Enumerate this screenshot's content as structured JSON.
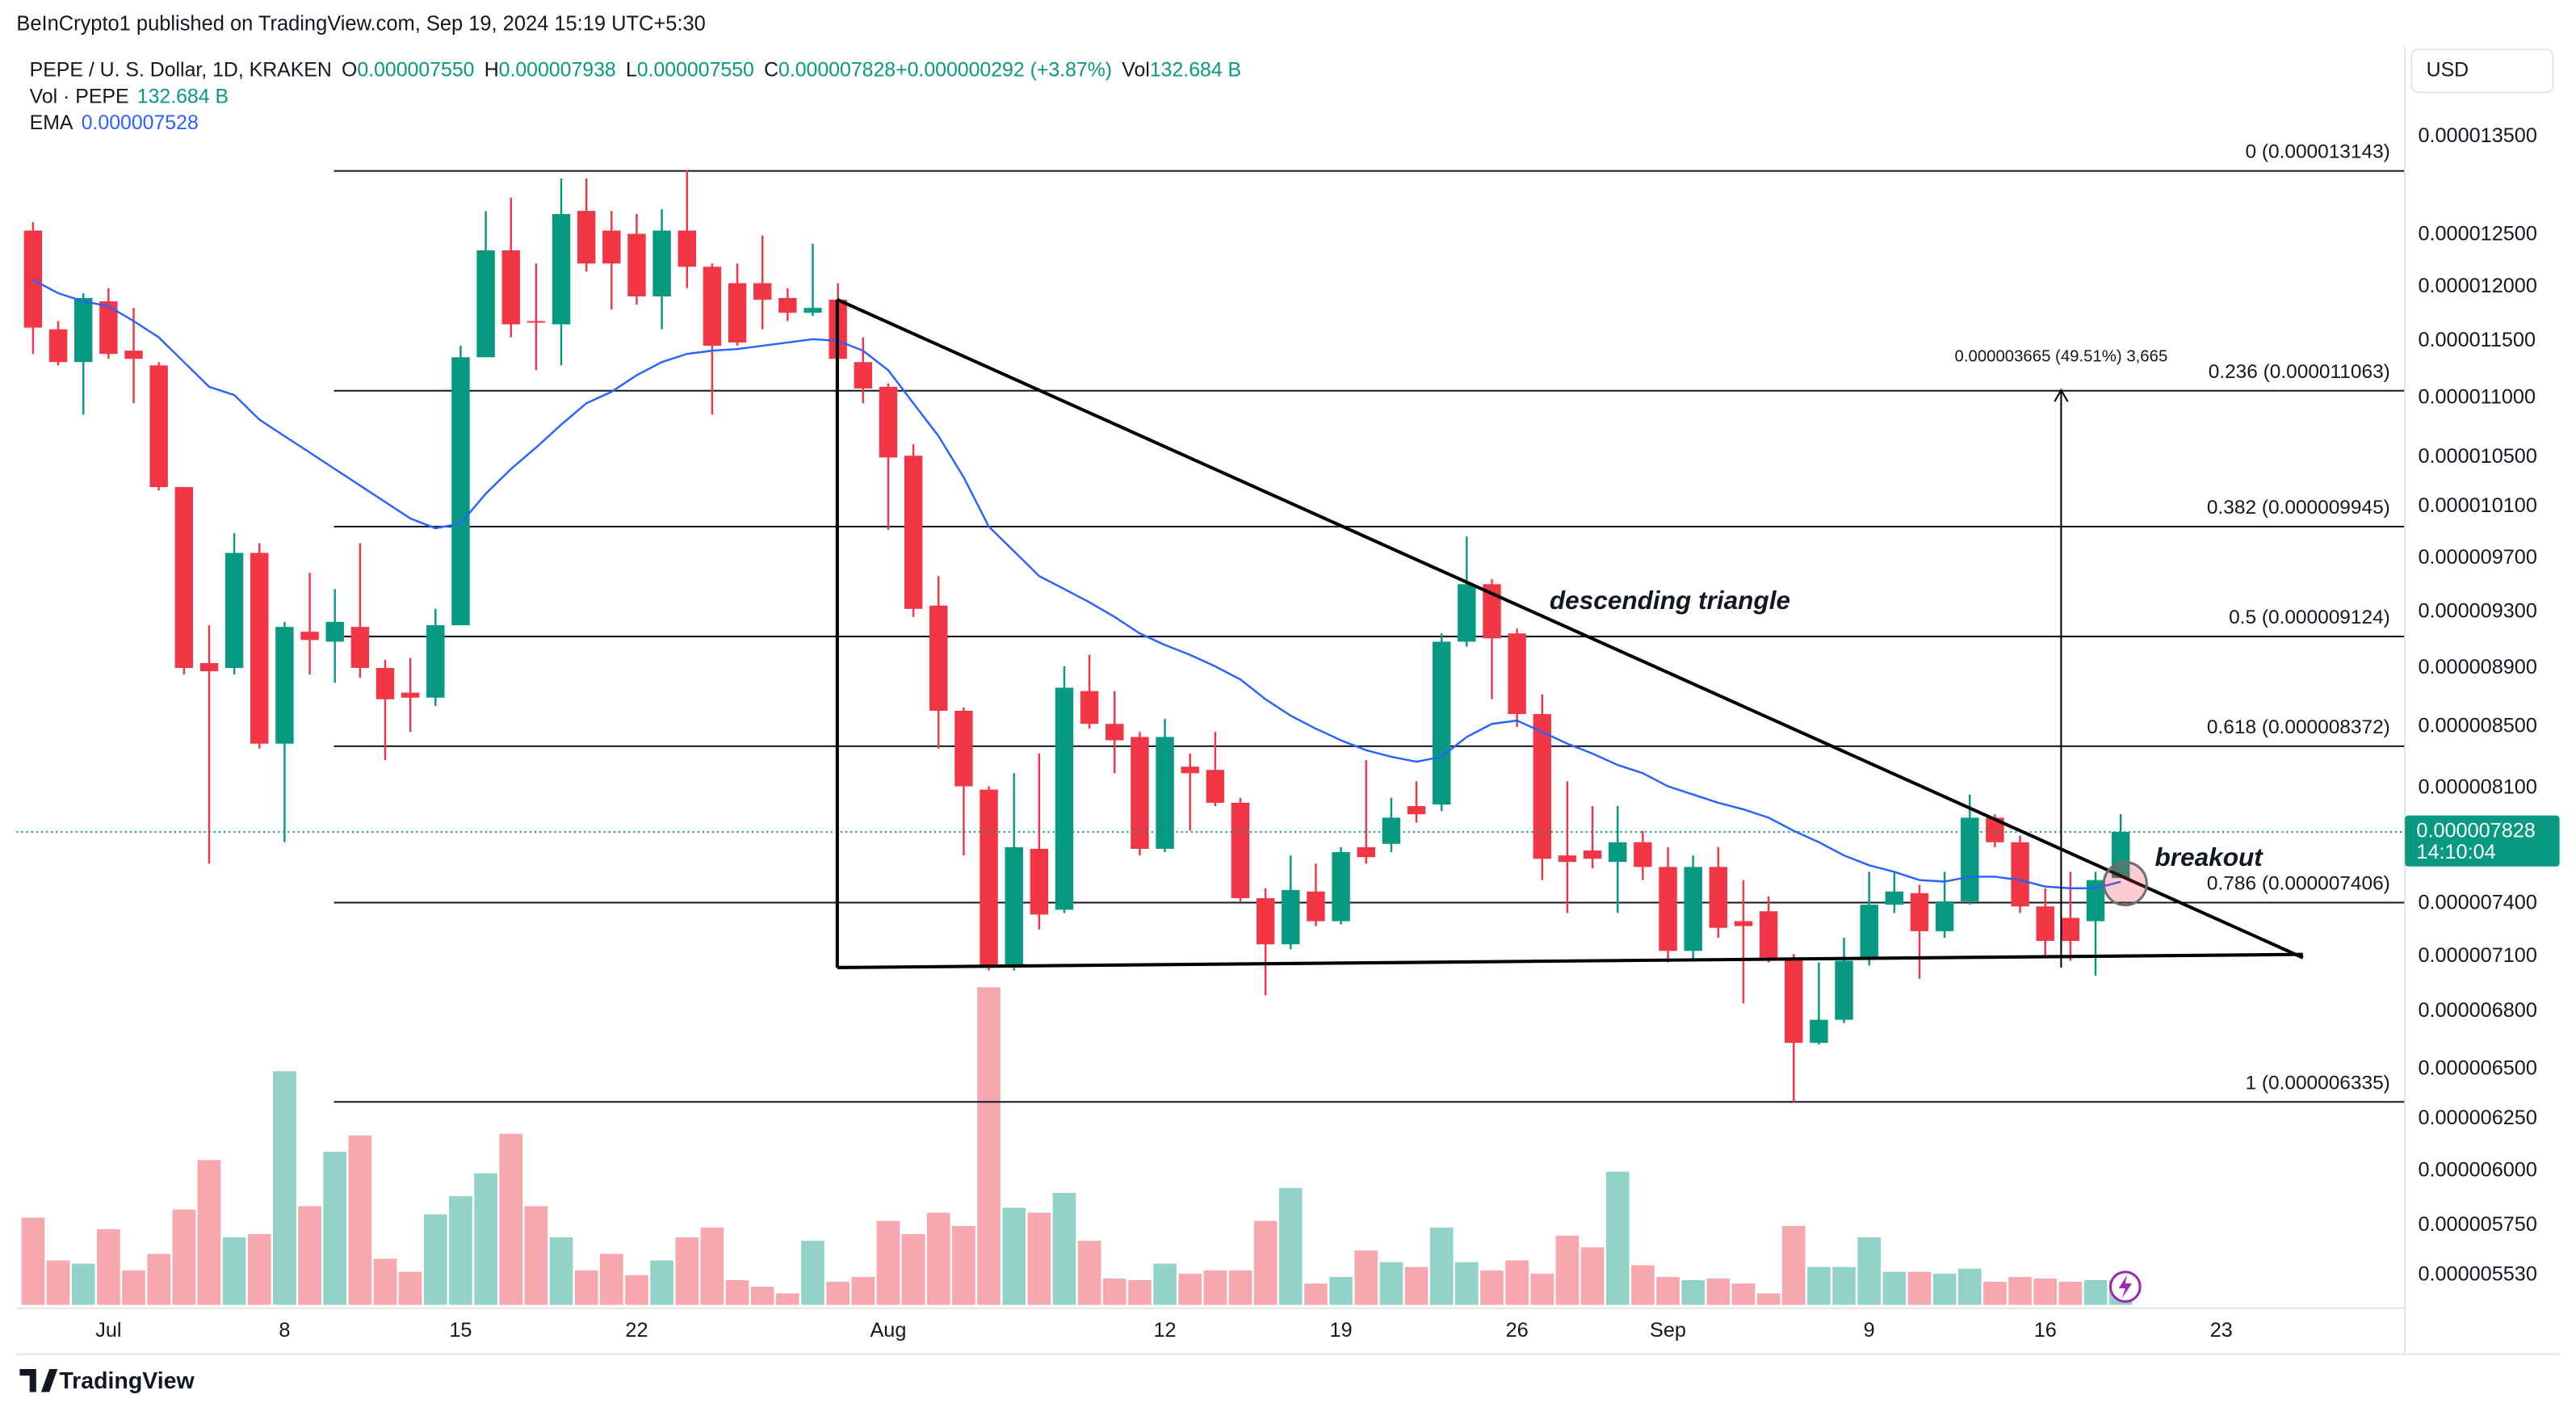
{
  "header": {
    "published": "BeInCrypto1 published on TradingView.com, Sep 19, 2024 15:19 UTC+5:30",
    "currency": "USD",
    "brand": "TradingView"
  },
  "chart_data": {
    "type": "candlestick",
    "title": "PEPE / U. S. Dollar, 1D, KRAKEN",
    "ohlc_legend": [
      {
        "key": "O",
        "value": "0.000007550"
      },
      {
        "key": "H",
        "value": "0.000007938"
      },
      {
        "key": "L",
        "value": "0.000007550"
      },
      {
        "key": "C",
        "value": "0.000007828"
      },
      {
        "key": "",
        "value": "+0.000000292 (+3.87%)"
      },
      {
        "key": "Vol",
        "value": "132.684 B"
      }
    ],
    "x": [
      -3,
      -2,
      -1,
      0,
      1,
      2,
      3,
      4,
      5,
      6,
      7,
      8,
      9,
      10,
      11,
      12,
      13,
      14,
      15,
      16,
      17,
      18,
      19,
      20,
      21,
      22,
      23,
      24,
      25,
      26,
      27,
      28,
      29,
      30,
      31,
      32,
      33,
      34,
      35,
      36,
      37,
      38,
      39,
      40,
      41,
      42,
      43,
      44,
      45,
      46,
      47,
      48,
      49,
      50,
      51,
      52,
      53,
      54,
      55,
      56,
      57,
      58,
      59,
      60,
      61,
      62,
      63,
      64,
      65,
      66,
      67,
      68,
      69,
      70,
      71,
      72,
      73,
      74,
      75,
      76,
      77,
      78,
      79,
      80
    ],
    "open": [
      1.2543e-05,
      1.1609e-05,
      1.1314e-05,
      1.1866e-05,
      1.1416e-05,
      1.1285e-05,
      1.0258e-05,
      8.936e-06,
      8.902e-06,
      9.742e-06,
      8.389e-06,
      9.158e-06,
      9.087e-06,
      9.193e-06,
      8.902e-06,
      8.731e-06,
      8.697e-06,
      9.205e-06,
      1.1357e-05,
      1.235e-05,
      1.1684e-05,
      1.1654e-05,
      1.2738e-05,
      1.2543e-05,
      1.2511e-05,
      1.1912e-05,
      1.2543e-05,
      1.2192e-05,
      1.2036e-05,
      1.2036e-05,
      1.1897e-05,
      1.176e-05,
      1.1881e-05,
      1.1314e-05,
      1.1097e-05,
      1.0513e-05,
      9.348e-06,
      8.608e-06,
      8.092e-06,
      7.04e-06,
      7.725e-06,
      7.365e-06,
      8.742e-06,
      8.52e-06,
      8.433e-06,
      7.725e-06,
      8.239e-06,
      8.218e-06,
      8.009e-06,
      7.432e-06,
      7.168e-06,
      7.471e-06,
      7.299e-06,
      7.735e-06,
      7.755e-06,
      7.988e-06,
      7.998e-06,
      9.087e-06,
      9.506e-06,
      9.146e-06,
      8.586e-06,
      7.685e-06,
      7.715e-06,
      7.646e-06,
      7.765e-06,
      7.616e-06,
      7.131e-06,
      7.616e-06,
      7.299e-06,
      7.356e-06,
      7.094e-06,
      6.635e-06,
      6.756e-06,
      7.085e-06,
      7.394e-06,
      7.461e-06,
      7.242e-06,
      7.413e-06,
      7.916e-06,
      7.765e-06,
      7.384e-06,
      7.318e-06,
      7.299e-06,
      7.55e-06
    ],
    "high": [
      1.2625e-05,
      1.1684e-05,
      1.1942e-05,
      1.1989e-05,
      1.1805e-05,
      1.1314e-05,
      1.0258e-05,
      9.205e-06,
      9.894e-06,
      9.817e-06,
      9.229e-06,
      9.592e-06,
      9.47e-06,
      9.817e-06,
      8.959e-06,
      8.971e-06,
      9.324e-06,
      1.146e-05,
      1.2735e-05,
      1.2871e-05,
      1.2223e-05,
      1.3066e-05,
      1.3066e-05,
      1.2738e-05,
      1.2706e-05,
      1.2755e-05,
      1.3154e-05,
      1.2223e-05,
      1.2223e-05,
      1.2494e-05,
      1.1989e-05,
      1.2414e-05,
      1.2036e-05,
      1.1535e-05,
      1.1126e-05,
      1.0608e-05,
      9.567e-06,
      8.63e-06,
      8.113e-06,
      8.197e-06,
      8.324e-06,
      8.913e-06,
      8.994e-06,
      8.742e-06,
      8.466e-06,
      8.553e-06,
      8.324e-06,
      8.466e-06,
      8.04e-06,
      7.49e-06,
      7.685e-06,
      7.636e-06,
      7.735e-06,
      8.282e-06,
      8.04e-06,
      8.145e-06,
      9.146e-06,
      9.868e-06,
      9.543e-06,
      9.181e-06,
      8.72e-06,
      8.145e-06,
      7.988e-06,
      7.988e-06,
      7.835e-06,
      7.735e-06,
      7.685e-06,
      7.735e-06,
      7.538e-06,
      7.442e-06,
      7.113e-06,
      7.067e-06,
      7.205e-06,
      7.587e-06,
      7.587e-06,
      7.51e-06,
      7.587e-06,
      8.061e-06,
      7.937e-06,
      7.805e-06,
      7.49e-06,
      7.587e-06,
      7.587e-06,
      7.938e-06
    ],
    "low": [
      1.1387e-05,
      1.1285e-05,
      1.0857e-05,
      1.1343e-05,
      1.0955e-05,
      1.0231e-05,
      8.856e-06,
      7.636e-06,
      8.856e-06,
      8.357e-06,
      7.765e-06,
      8.856e-06,
      8.799e-06,
      8.833e-06,
      8.282e-06,
      8.466e-06,
      8.641e-06,
      9.205e-06,
      1.1357e-05,
      1.1535e-05,
      1.1242e-05,
      1.1285e-05,
      1.2145e-05,
      1.179e-05,
      1.1836e-05,
      1.1609e-05,
      1.1989e-05,
      1.0857e-05,
      1.146e-05,
      1.1609e-05,
      1.1684e-05,
      1.173e-05,
      1.1026e-05,
      1.0955e-05,
      9.919e-06,
      9.265e-06,
      8.357e-06,
      7.685e-06,
      7.022e-06,
      7.022e-06,
      7.252e-06,
      7.346e-06,
      8.488e-06,
      8.197e-06,
      7.685e-06,
      7.705e-06,
      7.835e-06,
      7.988e-06,
      7.413e-06,
      6.887e-06,
      7.14e-06,
      7.271e-06,
      7.28e-06,
      7.636e-06,
      7.705e-06,
      7.886e-06,
      7.957e-06,
      9.052e-06,
      8.686e-06,
      8.499e-06,
      7.538e-06,
      7.346e-06,
      7.607e-06,
      7.346e-06,
      7.538e-06,
      7.067e-06,
      7.085e-06,
      7.205e-06,
      6.843e-06,
      7.067e-06,
      6.334e-06,
      6.626e-06,
      6.739e-06,
      7.049e-06,
      7.346e-06,
      6.977e-06,
      7.205e-06,
      7.394e-06,
      7.735e-06,
      7.346e-06,
      7.094e-06,
      7.076e-06,
      6.994e-06,
      7.55e-06
    ],
    "close": [
      1.1624e-05,
      1.1314e-05,
      1.1897e-05,
      1.1387e-05,
      1.1343e-05,
      1.0258e-05,
      8.902e-06,
      8.879e-06,
      9.742e-06,
      8.389e-06,
      9.193e-06,
      9.099e-06,
      9.229e-06,
      8.902e-06,
      8.686e-06,
      8.697e-06,
      9.205e-06,
      1.1357e-05,
      1.235e-05,
      1.1654e-05,
      1.1669e-05,
      1.2706e-05,
      1.2223e-05,
      1.2223e-05,
      1.1912e-05,
      1.2543e-05,
      1.2192e-05,
      1.146e-05,
      1.1489e-05,
      1.1881e-05,
      1.176e-05,
      1.1805e-05,
      1.1343e-05,
      1.1083e-05,
      1.0499e-05,
      9.324e-06,
      8.608e-06,
      8.113e-06,
      7.04e-06,
      7.735e-06,
      7.337e-06,
      8.765e-06,
      8.52e-06,
      8.411e-06,
      7.725e-06,
      8.433e-06,
      8.197e-06,
      8.009e-06,
      7.432e-06,
      7.168e-06,
      7.48e-06,
      7.299e-06,
      7.705e-06,
      7.675e-06,
      7.916e-06,
      7.937e-06,
      9.087e-06,
      9.506e-06,
      9.111e-06,
      8.586e-06,
      7.665e-06,
      7.646e-06,
      7.665e-06,
      7.765e-06,
      7.616e-06,
      7.131e-06,
      7.616e-06,
      7.261e-06,
      7.271e-06,
      7.094e-06,
      6.635e-06,
      6.756e-06,
      7.076e-06,
      7.394e-06,
      7.471e-06,
      7.242e-06,
      7.413e-06,
      7.916e-06,
      7.765e-06,
      7.384e-06,
      7.187e-06,
      7.187e-06,
      7.538e-06,
      7.828e-06
    ],
    "up_color": "#089981",
    "down_color": "#f23645",
    "series": [
      {
        "name": "Vol · PEPE",
        "type": "bar",
        "axis": "y2",
        "value_label": "132.684 B",
        "up_color": "#92d2c8",
        "down_color": "#f7a8ae",
        "values": [
          465,
          237,
          220,
          404,
          184,
          272,
          509,
          773,
          360,
          378,
          1247,
          527,
          817,
          904,
          246,
          176,
          483,
          580,
          702,
          913,
          527,
          360,
          184,
          272,
          158,
          237,
          360,
          413,
          132,
          97,
          61,
          342,
          123,
          149,
          448,
          378,
          492,
          421,
          1695,
          518,
          492,
          597,
          342,
          140,
          132,
          220,
          167,
          184,
          184,
          448,
          623,
          114,
          149,
          290,
          228,
          202,
          413,
          228,
          184,
          237,
          167,
          369,
          307,
          711,
          211,
          149,
          132,
          140,
          114,
          61,
          421,
          202,
          202,
          360,
          176,
          176,
          167,
          193,
          123,
          149,
          140,
          123,
          132,
          132.684
        ]
      },
      {
        "name": "EMA",
        "type": "line",
        "color": "#2962ff",
        "value_label": "0.000007528",
        "values": [
          1.2067e-05,
          1.1942e-05,
          1.1866e-05,
          1.1821e-05,
          1.1684e-05,
          1.1535e-05,
          1.1314e-05,
          1.1097e-05,
          1.1026e-05,
          1.0815e-05,
          1.0676e-05,
          1.054e-05,
          1.0404e-05,
          1.0271e-05,
          1.0139e-05,
          1.0009e-05,
          9.932e-06,
          9.97e-06,
          1.0205e-05,
          1.0404e-05,
          1.0581e-05,
          1.0773e-05,
          1.0955e-05,
          1.1054e-05,
          1.1198e-05,
          1.1314e-05,
          1.1387e-05,
          1.1416e-05,
          1.143e-05,
          1.146e-05,
          1.1489e-05,
          1.1519e-05,
          1.1504e-05,
          1.1416e-05,
          1.1242e-05,
          1.0955e-05,
          1.0676e-05,
          1.0337e-05,
          9.945e-06,
          9.755e-06,
          9.567e-06,
          9.47e-06,
          9.372e-06,
          9.265e-06,
          9.146e-06,
          9.064e-06,
          8.994e-06,
          8.913e-06,
          8.822e-06,
          8.686e-06,
          8.575e-06,
          8.488e-06,
          8.411e-06,
          8.346e-06,
          8.303e-06,
          8.271e-06,
          8.303e-06,
          8.433e-06,
          8.52e-06,
          8.542e-06,
          8.466e-06,
          8.389e-06,
          8.324e-06,
          8.25e-06,
          8.197e-06,
          8.113e-06,
          8.061e-06,
          8.009e-06,
          7.968e-06,
          7.916e-06,
          7.835e-06,
          7.765e-06,
          7.685e-06,
          7.626e-06,
          7.587e-06,
          7.538e-06,
          7.529e-06,
          7.558e-06,
          7.558e-06,
          7.538e-06,
          7.5e-06,
          7.49e-06,
          7.49e-06,
          7.528e-06
        ]
      }
    ],
    "log_scale": true,
    "grid": false,
    "xlim": [
      -3.66,
      91.3
    ],
    "xticks": [
      {
        "value": 0,
        "label": "Jul"
      },
      {
        "value": 7,
        "label": "8"
      },
      {
        "value": 14,
        "label": "15"
      },
      {
        "value": 21,
        "label": "22"
      },
      {
        "value": 31,
        "label": "Aug"
      },
      {
        "value": 42,
        "label": "12"
      },
      {
        "value": 49,
        "label": "19"
      },
      {
        "value": 56,
        "label": "26"
      },
      {
        "value": 62,
        "label": "Sep"
      },
      {
        "value": 70,
        "label": "9"
      },
      {
        "value": 77,
        "label": "16"
      },
      {
        "value": 84,
        "label": "23"
      }
    ],
    "ylim": [
      5.403e-06,
      1.4456e-05
    ],
    "yticks": [
      {
        "value": 1.35e-05,
        "label": "0.000013500"
      },
      {
        "value": 1.25e-05,
        "label": "0.000012500"
      },
      {
        "value": 1.2e-05,
        "label": "0.000012000"
      },
      {
        "value": 1.15e-05,
        "label": "0.000011500"
      },
      {
        "value": 1.1e-05,
        "label": "0.000011000"
      },
      {
        "value": 1.05e-05,
        "label": "0.000010500"
      },
      {
        "value": 1.01e-05,
        "label": "0.000010100"
      },
      {
        "value": 9.7e-06,
        "label": "0.000009700"
      },
      {
        "value": 9.3e-06,
        "label": "0.000009300"
      },
      {
        "value": 8.9e-06,
        "label": "0.000008900"
      },
      {
        "value": 8.5e-06,
        "label": "0.000008500"
      },
      {
        "value": 8.1e-06,
        "label": "0.000008100"
      },
      {
        "value": 7.4e-06,
        "label": "0.000007400"
      },
      {
        "value": 7.1e-06,
        "label": "0.000007100"
      },
      {
        "value": 6.8e-06,
        "label": "0.000006800"
      },
      {
        "value": 6.5e-06,
        "label": "0.000006500"
      },
      {
        "value": 6.25e-06,
        "label": "0.000006250"
      },
      {
        "value": 6e-06,
        "label": "0.000006000"
      },
      {
        "value": 5.75e-06,
        "label": "0.000005750"
      },
      {
        "value": 5.53e-06,
        "label": "0.000005530"
      }
    ],
    "y2lim": [
      0,
      1800
    ],
    "last_price": {
      "value": 7.828e-06,
      "label": "0.000007828",
      "countdown": "14:10:04"
    },
    "fib": [
      {
        "level": 0,
        "price": 1.3143e-05,
        "label": "0 (0.000013143)"
      },
      {
        "level": 0.236,
        "price": 1.1063e-05,
        "label": "0.236 (0.000011063)"
      },
      {
        "level": 0.382,
        "price": 9.945e-06,
        "label": "0.382 (0.000009945)"
      },
      {
        "level": 0.5,
        "price": 9.124e-06,
        "label": "0.5 (0.000009124)"
      },
      {
        "level": 0.618,
        "price": 8.372e-06,
        "label": "0.618 (0.000008372)"
      },
      {
        "level": 0.786,
        "price": 7.406e-06,
        "label": "0.786 (0.000007406)"
      },
      {
        "level": 1,
        "price": 6.335e-06,
        "label": "1 (0.000006335)"
      }
    ],
    "annotations": {
      "pattern": "descending triangle",
      "signal": "breakout",
      "measure": "0.000003665 (49.51%) 3,665"
    }
  }
}
